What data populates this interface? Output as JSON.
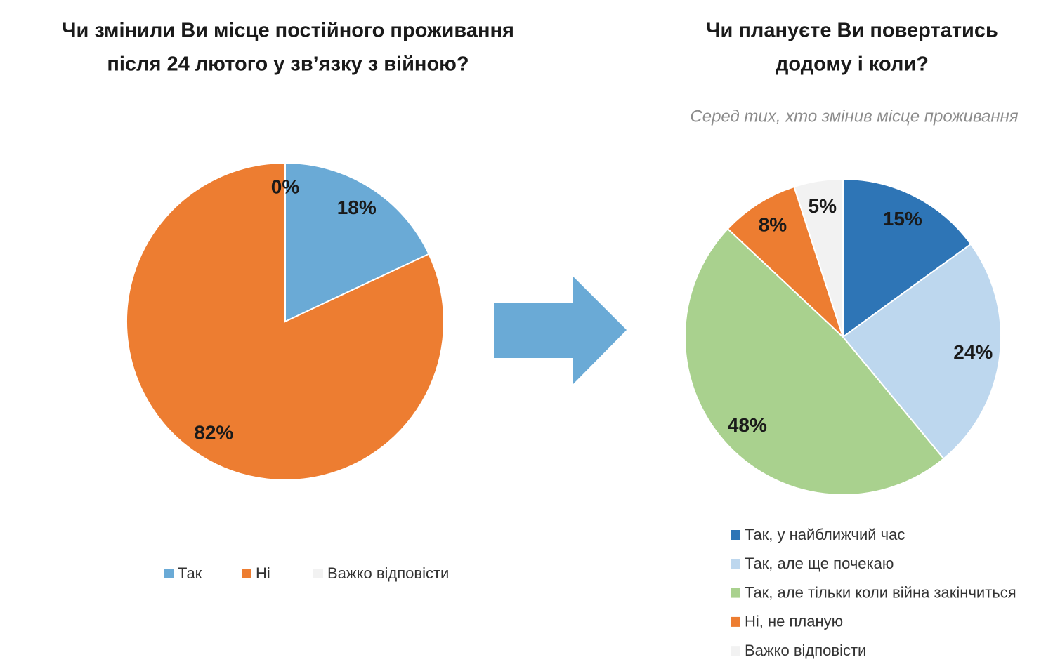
{
  "chart_data": [
    {
      "type": "pie",
      "title": [
        "Чи змінили Ви місце постійного проживання",
        "після  24 лютого у зв’язку з війною?"
      ],
      "categories": [
        "Так",
        "Ні",
        "Важко відповісти"
      ],
      "values": [
        18,
        82,
        0
      ],
      "value_labels": [
        "18%",
        "82%",
        "0%"
      ],
      "colors": [
        "#6aaad6",
        "#ed7d31",
        "#f2f2f2"
      ],
      "legend": "bottom"
    },
    {
      "type": "pie",
      "title": [
        "Чи плануєте Ви повертатись",
        "додому і коли?"
      ],
      "subtitle": "Серед тих, хто змінив місце проживання",
      "categories": [
        "Так, у найближчий час",
        "Так, але ще почекаю",
        "Так, але тільки коли війна закінчиться",
        "Ні, не планую",
        "Важко відповісти"
      ],
      "values": [
        15,
        24,
        48,
        8,
        5
      ],
      "value_labels": [
        "15%",
        "24%",
        "48%",
        "8%",
        "5%"
      ],
      "colors": [
        "#2e75b6",
        "#bdd7ee",
        "#a9d18e",
        "#ed7d31",
        "#f2f2f2"
      ],
      "legend": "bottom-vertical"
    }
  ]
}
